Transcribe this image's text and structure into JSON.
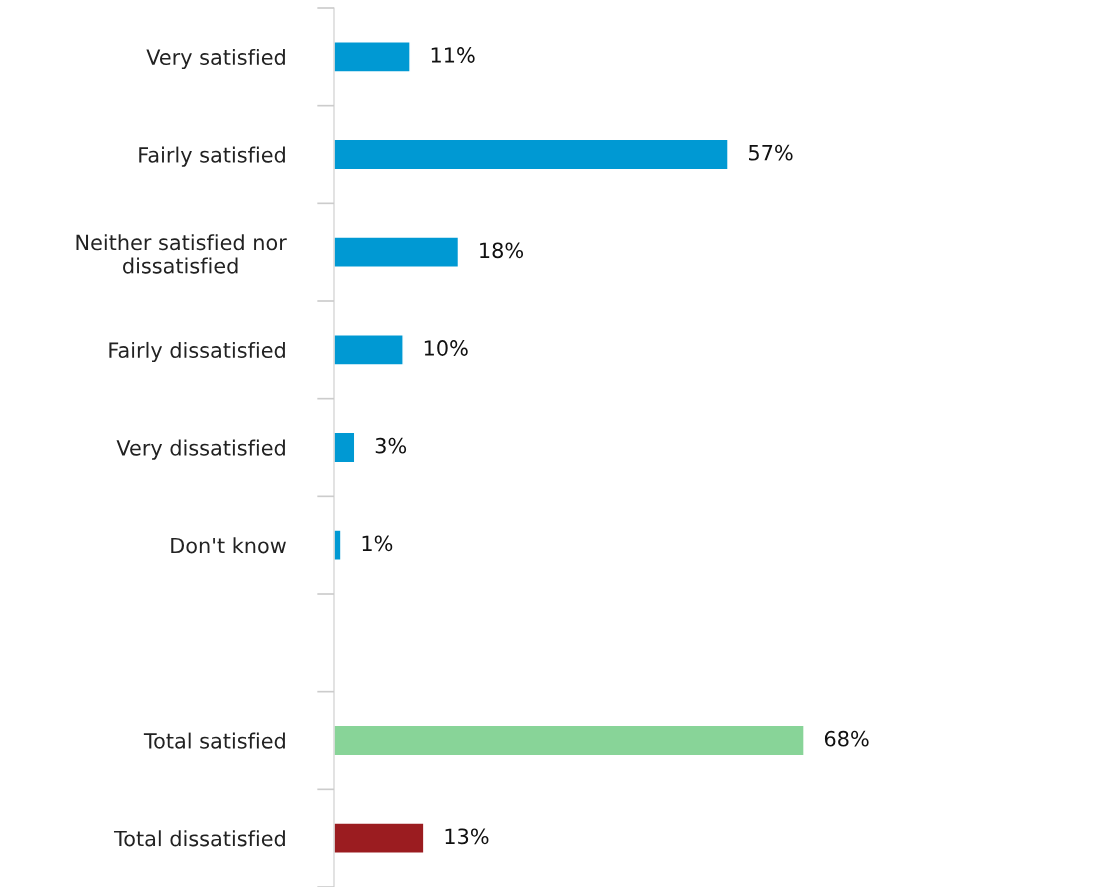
{
  "chart_data": {
    "type": "bar",
    "orientation": "horizontal",
    "categories": [
      "Very satisfied",
      "Fairly satisfied",
      "Neither satisfied nor\ndissatisfied",
      "Fairly dissatisfied",
      "Very dissatisfied",
      "Don't know",
      null,
      "Total satisfied",
      "Total dissatisfied"
    ],
    "values": [
      11,
      57,
      18,
      10,
      3,
      1,
      null,
      68,
      13
    ],
    "colors": [
      "#0099d3",
      "#0099d3",
      "#0099d3",
      "#0099d3",
      "#0099d3",
      "#0099d3",
      null,
      "#88d498",
      "#9b1c20"
    ],
    "value_labels": [
      "11%",
      "57%",
      "18%",
      "10%",
      "3%",
      "1%",
      null,
      "68%",
      "13%"
    ],
    "grid": false,
    "legend": false
  }
}
